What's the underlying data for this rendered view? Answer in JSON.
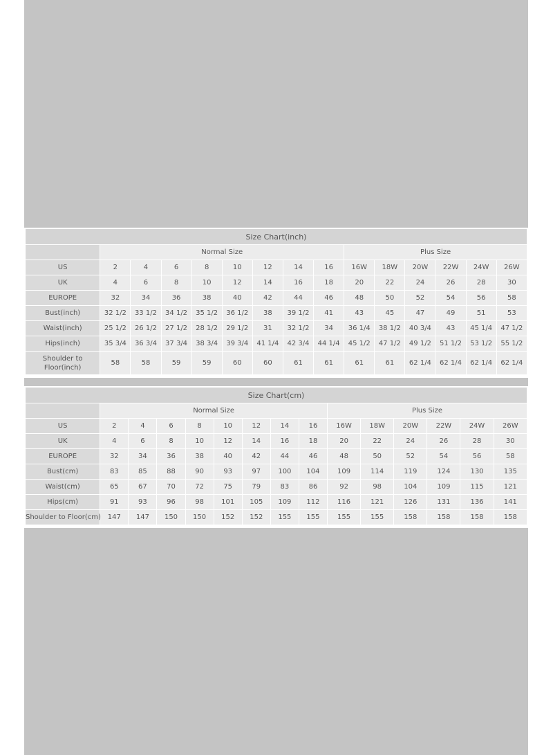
{
  "tables": [
    {
      "title": "Size Chart(inch)",
      "groups": [
        "Normal Size",
        "Plus Size"
      ],
      "rows": [
        {
          "label": "US",
          "values": [
            "2",
            "4",
            "6",
            "8",
            "10",
            "12",
            "14",
            "16",
            "16W",
            "18W",
            "20W",
            "22W",
            "24W",
            "26W"
          ]
        },
        {
          "label": "UK",
          "values": [
            "4",
            "6",
            "8",
            "10",
            "12",
            "14",
            "16",
            "18",
            "20",
            "22",
            "24",
            "26",
            "28",
            "30"
          ]
        },
        {
          "label": "EUROPE",
          "values": [
            "32",
            "34",
            "36",
            "38",
            "40",
            "42",
            "44",
            "46",
            "48",
            "50",
            "52",
            "54",
            "56",
            "58"
          ]
        },
        {
          "label": "Bust(inch)",
          "values": [
            "32 1/2",
            "33 1/2",
            "34 1/2",
            "35 1/2",
            "36 1/2",
            "38",
            "39 1/2",
            "41",
            "43",
            "45",
            "47",
            "49",
            "51",
            "53"
          ]
        },
        {
          "label": "Waist(inch)",
          "values": [
            "25 1/2",
            "26 1/2",
            "27 1/2",
            "28 1/2",
            "29 1/2",
            "31",
            "32 1/2",
            "34",
            "36 1/4",
            "38 1/2",
            "40 3/4",
            "43",
            "45 1/4",
            "47 1/2"
          ]
        },
        {
          "label": "Hips(inch)",
          "values": [
            "35 3/4",
            "36 3/4",
            "37 3/4",
            "38 3/4",
            "39 3/4",
            "41 1/4",
            "42 3/4",
            "44 1/4",
            "45 1/2",
            "47 1/2",
            "49 1/2",
            "51 1/2",
            "53 1/2",
            "55 1/2"
          ]
        },
        {
          "label": "Shoulder to Floor(inch)",
          "values": [
            "58",
            "58",
            "59",
            "59",
            "60",
            "60",
            "61",
            "61",
            "61",
            "61",
            "62 1/4",
            "62 1/4",
            "62 1/4",
            "62 1/4"
          ]
        }
      ]
    },
    {
      "title": "Size Chart(cm)",
      "groups": [
        "Normal Size",
        "Plus Size"
      ],
      "rows": [
        {
          "label": "US",
          "values": [
            "2",
            "4",
            "6",
            "8",
            "10",
            "12",
            "14",
            "16",
            "16W",
            "18W",
            "20W",
            "22W",
            "24W",
            "26W"
          ]
        },
        {
          "label": "UK",
          "values": [
            "4",
            "6",
            "8",
            "10",
            "12",
            "14",
            "16",
            "18",
            "20",
            "22",
            "24",
            "26",
            "28",
            "30"
          ]
        },
        {
          "label": "EUROPE",
          "values": [
            "32",
            "34",
            "36",
            "38",
            "40",
            "42",
            "44",
            "46",
            "48",
            "50",
            "52",
            "54",
            "56",
            "58"
          ]
        },
        {
          "label": "Bust(cm)",
          "values": [
            "83",
            "85",
            "88",
            "90",
            "93",
            "97",
            "100",
            "104",
            "109",
            "114",
            "119",
            "124",
            "130",
            "135"
          ]
        },
        {
          "label": "Waist(cm)",
          "values": [
            "65",
            "67",
            "70",
            "72",
            "75",
            "79",
            "83",
            "86",
            "92",
            "98",
            "104",
            "109",
            "115",
            "121"
          ]
        },
        {
          "label": "Hips(cm)",
          "values": [
            "91",
            "93",
            "96",
            "98",
            "101",
            "105",
            "109",
            "112",
            "116",
            "121",
            "126",
            "131",
            "136",
            "141"
          ]
        },
        {
          "label": "Shoulder to Floor(cm)",
          "values": [
            "147",
            "147",
            "150",
            "150",
            "152",
            "152",
            "155",
            "155",
            "155",
            "155",
            "158",
            "158",
            "158",
            "158"
          ]
        }
      ]
    }
  ]
}
